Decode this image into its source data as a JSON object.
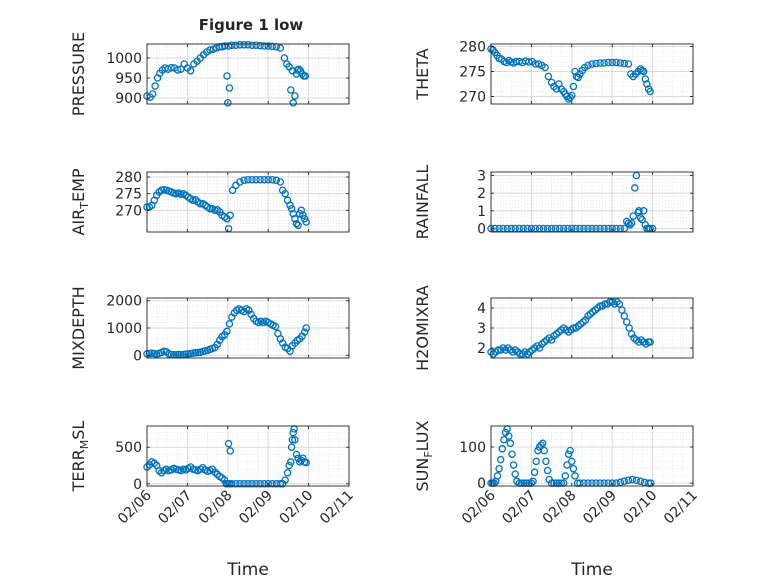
{
  "figure": {
    "title": "Figure 1 low",
    "marker_color": "#0072BD"
  },
  "chart_data": [
    {
      "type": "scatter",
      "ylabel": "PRESSURE",
      "xlabel": "",
      "xlim": [
        0,
        5
      ],
      "ylim": [
        885,
        1035
      ],
      "yticks": [
        900,
        950,
        1000
      ],
      "xticks": [
        0,
        1,
        2,
        3,
        4,
        5
      ],
      "xticklabels": [
        "02/06",
        "02/07",
        "02/08",
        "02/09",
        "02/10",
        "02/11"
      ],
      "x": [
        0.0,
        0.08,
        0.14,
        0.2,
        0.26,
        0.32,
        0.38,
        0.45,
        0.52,
        0.6,
        0.68,
        0.76,
        0.84,
        0.92,
        1.0,
        1.08,
        1.16,
        1.24,
        1.32,
        1.4,
        1.48,
        1.56,
        1.64,
        1.72,
        1.8,
        1.86,
        1.92,
        1.98,
        2.0,
        2.02,
        2.04,
        2.1,
        2.2,
        2.3,
        2.4,
        2.5,
        2.6,
        2.7,
        2.8,
        2.9,
        3.0,
        3.1,
        3.2,
        3.3,
        3.4,
        3.46,
        3.52,
        3.56,
        3.6,
        3.62,
        3.66,
        3.7,
        3.72,
        3.76,
        3.8,
        3.84,
        3.88,
        3.92
      ],
      "values": [
        905,
        902,
        910,
        930,
        950,
        962,
        970,
        975,
        972,
        976,
        975,
        970,
        972,
        985,
        975,
        968,
        985,
        992,
        1000,
        1008,
        1015,
        1020,
        1022,
        1025,
        1028,
        1028,
        1030,
        955,
        888,
        1030,
        925,
        1032,
        1032,
        1033,
        1033,
        1033,
        1032,
        1032,
        1031,
        1030,
        1030,
        1029,
        1028,
        1025,
        1000,
        985,
        978,
        920,
        968,
        888,
        905,
        960,
        970,
        972,
        968,
        960,
        955,
        955
      ]
    },
    {
      "type": "scatter",
      "ylabel": "THETA",
      "xlabel": "",
      "xlim": [
        0,
        5
      ],
      "ylim": [
        268.5,
        280.5
      ],
      "yticks": [
        270,
        275,
        280
      ],
      "xticks": [
        0,
        1,
        2,
        3,
        4,
        5
      ],
      "xticklabels": [
        "02/06",
        "02/07",
        "02/08",
        "02/09",
        "02/10",
        "02/11"
      ],
      "x": [
        0.0,
        0.05,
        0.1,
        0.15,
        0.2,
        0.26,
        0.32,
        0.38,
        0.44,
        0.5,
        0.56,
        0.62,
        0.7,
        0.78,
        0.86,
        0.94,
        1.02,
        1.1,
        1.18,
        1.26,
        1.34,
        1.42,
        1.5,
        1.56,
        1.62,
        1.68,
        1.74,
        1.8,
        1.84,
        1.88,
        1.92,
        1.96,
        2.0,
        2.04,
        2.08,
        2.12,
        2.16,
        2.2,
        2.26,
        2.32,
        2.4,
        2.5,
        2.6,
        2.7,
        2.8,
        2.9,
        3.0,
        3.1,
        3.2,
        3.3,
        3.4,
        3.46,
        3.52,
        3.58,
        3.64,
        3.7,
        3.74,
        3.78,
        3.82,
        3.86,
        3.9,
        3.94
      ],
      "values": [
        279.5,
        279.3,
        278.8,
        278.2,
        277.6,
        277.5,
        277.0,
        276.8,
        277.2,
        276.9,
        276.7,
        277.0,
        277.0,
        276.8,
        277.1,
        276.9,
        277.0,
        276.5,
        276.5,
        276.2,
        275.8,
        274.0,
        272.8,
        272.0,
        271.5,
        272.5,
        271.5,
        271.0,
        270.5,
        270.0,
        269.5,
        269.8,
        270.2,
        272.0,
        275.0,
        274.0,
        273.8,
        274.5,
        275.2,
        275.8,
        276.2,
        276.5,
        276.6,
        276.7,
        276.7,
        276.8,
        276.8,
        276.8,
        276.7,
        276.6,
        276.5,
        274.5,
        274.0,
        274.5,
        275.0,
        275.5,
        275.2,
        275.0,
        273.5,
        272.5,
        271.5,
        271.0
      ]
    },
    {
      "type": "scatter",
      "ylabel": "AIR_TEMP",
      "xlabel": "",
      "xlim": [
        0,
        5
      ],
      "ylim": [
        263.5,
        281.5
      ],
      "yticks": [
        270,
        275,
        280
      ],
      "xticks": [
        0,
        1,
        2,
        3,
        4,
        5
      ],
      "xticklabels": [
        "02/06",
        "02/07",
        "02/08",
        "02/09",
        "02/10",
        "02/11"
      ],
      "x": [
        0.0,
        0.06,
        0.12,
        0.18,
        0.24,
        0.3,
        0.36,
        0.42,
        0.48,
        0.54,
        0.6,
        0.66,
        0.72,
        0.78,
        0.84,
        0.9,
        0.96,
        1.02,
        1.08,
        1.14,
        1.2,
        1.26,
        1.32,
        1.38,
        1.44,
        1.5,
        1.56,
        1.62,
        1.68,
        1.74,
        1.8,
        1.86,
        1.92,
        1.98,
        2.02,
        2.06,
        2.12,
        2.2,
        2.3,
        2.4,
        2.5,
        2.6,
        2.7,
        2.8,
        2.9,
        3.0,
        3.1,
        3.2,
        3.3,
        3.36,
        3.42,
        3.48,
        3.54,
        3.58,
        3.62,
        3.66,
        3.7,
        3.74,
        3.78,
        3.82,
        3.86,
        3.9,
        3.94
      ],
      "values": [
        271.0,
        271.0,
        271.5,
        273.0,
        274.5,
        275.5,
        276.0,
        276.2,
        276.0,
        275.8,
        275.5,
        275.2,
        275.0,
        275.2,
        274.8,
        275.0,
        274.5,
        274.0,
        273.5,
        273.0,
        273.2,
        272.5,
        272.0,
        272.0,
        271.5,
        271.0,
        270.5,
        270.5,
        270.0,
        270.2,
        269.5,
        268.5,
        268.0,
        267.5,
        264.5,
        268.5,
        276.0,
        277.5,
        278.5,
        279.0,
        279.2,
        279.2,
        279.2,
        279.2,
        279.2,
        279.2,
        279.2,
        279.0,
        278.5,
        276.0,
        275.0,
        273.0,
        271.5,
        270.5,
        269.0,
        267.5,
        266.0,
        265.5,
        269.0,
        270.0,
        268.5,
        267.5,
        266.5
      ]
    },
    {
      "type": "scatter",
      "ylabel": "RAINFALL",
      "xlabel": "",
      "xlim": [
        0,
        5
      ],
      "ylim": [
        -0.2,
        3.2
      ],
      "yticks": [
        0,
        1,
        2,
        3
      ],
      "xticks": [
        0,
        1,
        2,
        3,
        4,
        5
      ],
      "xticklabels": [
        "02/06",
        "02/07",
        "02/08",
        "02/09",
        "02/10",
        "02/11"
      ],
      "x": [
        0.0,
        0.1,
        0.2,
        0.3,
        0.4,
        0.5,
        0.6,
        0.7,
        0.8,
        0.9,
        1.0,
        1.1,
        1.2,
        1.3,
        1.4,
        1.5,
        1.6,
        1.7,
        1.8,
        1.9,
        2.0,
        2.1,
        2.2,
        2.3,
        2.4,
        2.5,
        2.6,
        2.7,
        2.8,
        2.9,
        3.0,
        3.1,
        3.2,
        3.3,
        3.36,
        3.4,
        3.44,
        3.48,
        3.52,
        3.56,
        3.6,
        3.64,
        3.66,
        3.7,
        3.74,
        3.78,
        3.82,
        3.86,
        3.9,
        3.94,
        4.0
      ],
      "values": [
        0,
        0,
        0,
        0,
        0,
        0,
        0,
        0,
        0,
        0,
        0,
        0,
        0,
        0,
        0,
        0,
        0,
        0,
        0,
        0,
        0,
        0,
        0,
        0,
        0,
        0,
        0,
        0,
        0,
        0,
        0,
        0,
        0,
        0,
        0.4,
        0.3,
        0.2,
        0.3,
        0.7,
        2.3,
        3.0,
        0.9,
        1.0,
        0.6,
        0.5,
        1.0,
        0.2,
        0,
        0,
        0,
        0
      ]
    },
    {
      "type": "scatter",
      "ylabel": "MIXDEPTH",
      "xlabel": "",
      "xlim": [
        0,
        5
      ],
      "ylim": [
        -100,
        2100
      ],
      "yticks": [
        0,
        1000,
        2000
      ],
      "xticks": [
        0,
        1,
        2,
        3,
        4,
        5
      ],
      "xticklabels": [
        "02/06",
        "02/07",
        "02/08",
        "02/09",
        "02/10",
        "02/11"
      ],
      "x": [
        0.0,
        0.06,
        0.12,
        0.18,
        0.24,
        0.3,
        0.36,
        0.42,
        0.48,
        0.54,
        0.6,
        0.66,
        0.72,
        0.78,
        0.84,
        0.9,
        0.96,
        1.02,
        1.08,
        1.14,
        1.2,
        1.26,
        1.32,
        1.38,
        1.44,
        1.5,
        1.56,
        1.62,
        1.68,
        1.74,
        1.8,
        1.86,
        1.92,
        1.98,
        2.04,
        2.1,
        2.16,
        2.22,
        2.28,
        2.34,
        2.4,
        2.46,
        2.52,
        2.58,
        2.64,
        2.7,
        2.76,
        2.82,
        2.88,
        2.94,
        3.0,
        3.06,
        3.12,
        3.18,
        3.24,
        3.3,
        3.36,
        3.42,
        3.48,
        3.54,
        3.6,
        3.66,
        3.72,
        3.78,
        3.84,
        3.9,
        3.94
      ],
      "values": [
        50,
        60,
        80,
        60,
        40,
        70,
        100,
        150,
        130,
        50,
        30,
        20,
        20,
        30,
        20,
        30,
        40,
        50,
        60,
        80,
        90,
        100,
        110,
        140,
        160,
        180,
        220,
        250,
        280,
        400,
        550,
        680,
        750,
        880,
        1150,
        1400,
        1550,
        1650,
        1700,
        1650,
        1600,
        1700,
        1650,
        1500,
        1350,
        1250,
        1200,
        1250,
        1200,
        1250,
        1200,
        1150,
        1100,
        1050,
        800,
        600,
        450,
        300,
        250,
        150,
        350,
        450,
        550,
        600,
        700,
        850,
        1000
      ]
    },
    {
      "type": "scatter",
      "ylabel": "H2OMIXRA",
      "xlabel": "",
      "xlim": [
        0,
        5
      ],
      "ylim": [
        1.5,
        4.5
      ],
      "yticks": [
        2,
        3,
        4
      ],
      "xticks": [
        0,
        1,
        2,
        3,
        4,
        5
      ],
      "xticklabels": [
        "02/06",
        "02/07",
        "02/08",
        "02/09",
        "02/10",
        "02/11"
      ],
      "x": [
        0.0,
        0.06,
        0.12,
        0.18,
        0.24,
        0.3,
        0.36,
        0.42,
        0.48,
        0.54,
        0.6,
        0.66,
        0.72,
        0.78,
        0.84,
        0.9,
        0.96,
        1.02,
        1.08,
        1.14,
        1.2,
        1.26,
        1.32,
        1.38,
        1.44,
        1.5,
        1.56,
        1.62,
        1.68,
        1.74,
        1.8,
        1.86,
        1.92,
        1.98,
        2.04,
        2.1,
        2.16,
        2.22,
        2.28,
        2.34,
        2.4,
        2.46,
        2.52,
        2.58,
        2.64,
        2.7,
        2.76,
        2.82,
        2.88,
        2.94,
        3.0,
        3.06,
        3.12,
        3.18,
        3.24,
        3.3,
        3.36,
        3.42,
        3.48,
        3.54,
        3.6,
        3.66,
        3.72,
        3.78,
        3.84,
        3.9,
        3.94
      ],
      "values": [
        1.8,
        1.7,
        1.8,
        1.9,
        1.9,
        2.0,
        1.9,
        2.0,
        1.9,
        1.8,
        1.9,
        1.8,
        1.7,
        1.7,
        1.8,
        1.7,
        1.8,
        1.9,
        2.0,
        2.1,
        2.0,
        2.2,
        2.3,
        2.4,
        2.5,
        2.4,
        2.6,
        2.7,
        2.8,
        2.9,
        3.0,
        2.9,
        2.8,
        2.9,
        3.0,
        3.0,
        3.1,
        3.2,
        3.3,
        3.4,
        3.6,
        3.7,
        3.8,
        3.9,
        4.0,
        4.1,
        4.1,
        4.2,
        4.2,
        4.3,
        4.3,
        4.2,
        4.3,
        4.2,
        3.9,
        3.6,
        3.3,
        3.0,
        2.7,
        2.5,
        2.4,
        2.3,
        2.4,
        2.3,
        2.2,
        2.3,
        2.3
      ]
    },
    {
      "type": "scatter",
      "ylabel": "TERR_MSL",
      "xlabel": "Time",
      "xlim": [
        0,
        5
      ],
      "ylim": [
        -30,
        790
      ],
      "yticks": [
        0,
        500
      ],
      "xticks": [
        0,
        1,
        2,
        3,
        4,
        5
      ],
      "xticklabels": [
        "02/06",
        "02/07",
        "02/08",
        "02/09",
        "02/10",
        "02/11"
      ],
      "x": [
        0.0,
        0.06,
        0.12,
        0.18,
        0.24,
        0.3,
        0.36,
        0.42,
        0.48,
        0.54,
        0.6,
        0.66,
        0.72,
        0.78,
        0.84,
        0.9,
        0.96,
        1.02,
        1.08,
        1.14,
        1.2,
        1.26,
        1.32,
        1.38,
        1.44,
        1.5,
        1.56,
        1.62,
        1.68,
        1.74,
        1.8,
        1.86,
        1.92,
        1.96,
        2.0,
        2.02,
        2.04,
        2.06,
        2.1,
        2.2,
        2.3,
        2.4,
        2.5,
        2.6,
        2.7,
        2.8,
        2.9,
        3.0,
        3.1,
        3.2,
        3.3,
        3.36,
        3.42,
        3.48,
        3.52,
        3.56,
        3.58,
        3.6,
        3.62,
        3.64,
        3.66,
        3.7,
        3.74,
        3.78,
        3.82,
        3.86,
        3.9,
        3.94
      ],
      "values": [
        230,
        260,
        300,
        280,
        250,
        180,
        150,
        180,
        200,
        180,
        190,
        210,
        200,
        190,
        180,
        200,
        190,
        210,
        230,
        200,
        190,
        180,
        200,
        220,
        190,
        170,
        180,
        200,
        160,
        130,
        100,
        80,
        50,
        0,
        0,
        550,
        0,
        450,
        0,
        0,
        0,
        0,
        0,
        0,
        0,
        0,
        0,
        0,
        0,
        0,
        0,
        0,
        50,
        150,
        250,
        300,
        500,
        600,
        700,
        750,
        600,
        400,
        350,
        300,
        320,
        350,
        300,
        290
      ]
    },
    {
      "type": "scatter",
      "ylabel": "SUN_FLUX",
      "xlabel": "Time",
      "xlim": [
        0,
        5
      ],
      "ylim": [
        -8,
        158
      ],
      "yticks": [
        0,
        100
      ],
      "xticks": [
        0,
        1,
        2,
        3,
        4,
        5
      ],
      "xticklabels": [
        "02/06",
        "02/07",
        "02/08",
        "02/09",
        "02/10",
        "02/11"
      ],
      "x": [
        0.0,
        0.04,
        0.08,
        0.12,
        0.16,
        0.2,
        0.24,
        0.28,
        0.32,
        0.36,
        0.4,
        0.44,
        0.48,
        0.52,
        0.56,
        0.6,
        0.64,
        0.7,
        0.76,
        0.82,
        0.88,
        0.94,
        1.0,
        1.04,
        1.08,
        1.12,
        1.16,
        1.2,
        1.24,
        1.28,
        1.32,
        1.36,
        1.4,
        1.44,
        1.5,
        1.56,
        1.62,
        1.68,
        1.74,
        1.8,
        1.84,
        1.88,
        1.92,
        1.96,
        2.0,
        2.04,
        2.08,
        2.14,
        2.2,
        2.3,
        2.4,
        2.5,
        2.6,
        2.7,
        2.8,
        2.9,
        3.0,
        3.1,
        3.2,
        3.3,
        3.4,
        3.5,
        3.6,
        3.7,
        3.8,
        3.9,
        3.96
      ],
      "values": [
        0,
        0,
        0,
        5,
        20,
        40,
        65,
        95,
        120,
        140,
        150,
        130,
        110,
        80,
        50,
        25,
        5,
        0,
        0,
        0,
        0,
        0,
        0,
        5,
        30,
        60,
        90,
        100,
        105,
        110,
        90,
        60,
        35,
        10,
        0,
        0,
        0,
        0,
        0,
        0,
        20,
        50,
        80,
        90,
        60,
        40,
        20,
        0,
        0,
        0,
        0,
        0,
        0,
        0,
        0,
        0,
        0,
        0,
        2,
        5,
        8,
        10,
        8,
        5,
        2,
        0,
        0
      ]
    }
  ]
}
